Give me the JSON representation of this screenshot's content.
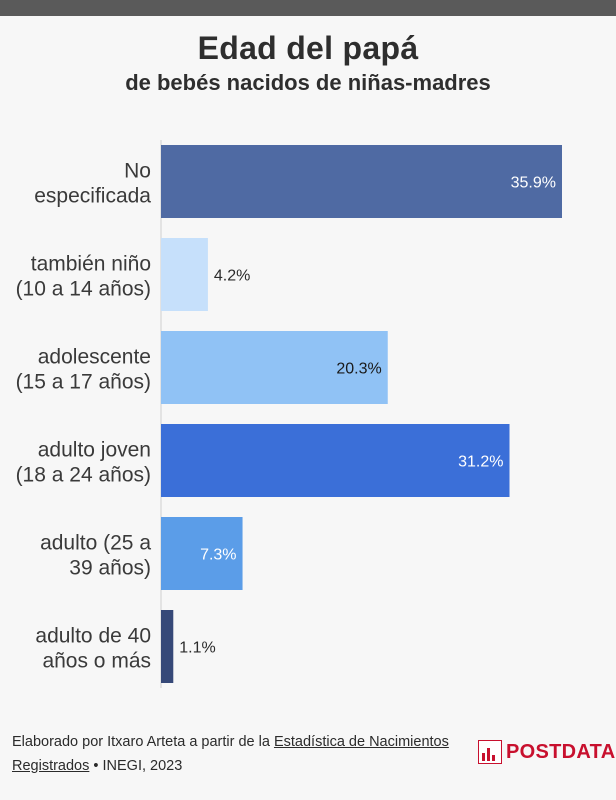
{
  "title": "Edad del papá",
  "subtitle": "de bebés nacidos de niñas-madres",
  "chart_data": {
    "type": "bar",
    "orientation": "horizontal",
    "categories": [
      [
        "No",
        "especificada"
      ],
      [
        "también niño",
        "(10 a 14 años)"
      ],
      [
        "adolescente",
        "(15 a 17 años)"
      ],
      [
        "adulto joven",
        "(18 a 24 años)"
      ],
      [
        "adulto (25 a",
        "39 años)"
      ],
      [
        "adulto de 40",
        "años o más"
      ]
    ],
    "values": [
      35.9,
      4.2,
      20.3,
      31.2,
      7.3,
      1.1
    ],
    "value_labels": [
      "35.9%",
      "4.2%",
      "20.3%",
      "31.2%",
      "7.3%",
      "1.1%"
    ],
    "colors": [
      "#4f6aa3",
      "#c6e0fb",
      "#90c2f5",
      "#3b6fd8",
      "#5b9de8",
      "#364978"
    ],
    "label_colors": [
      "#ffffff",
      "#2b2b2b",
      "#1a1a1a",
      "#ffffff",
      "#ffffff",
      "#2b2b2b"
    ],
    "label_inside": [
      true,
      false,
      true,
      true,
      true,
      false
    ],
    "xlim": [
      0,
      40
    ],
    "grid": false,
    "legend": "none"
  },
  "footer": {
    "prefix": "Elaborado por Itxaro Arteta a partir de la ",
    "source_link": "Estadística de Nacimientos Registrados",
    "suffix": " • INEGI, 2023"
  },
  "logo": {
    "text": "POSTDATA"
  }
}
